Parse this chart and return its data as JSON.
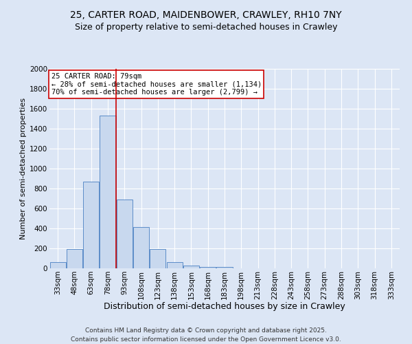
{
  "title1": "25, CARTER ROAD, MAIDENBOWER, CRAWLEY, RH10 7NY",
  "title2": "Size of property relative to semi-detached houses in Crawley",
  "xlabel": "Distribution of semi-detached houses by size in Crawley",
  "ylabel": "Number of semi-detached properties",
  "categories": [
    "33sqm",
    "48sqm",
    "63sqm",
    "78sqm",
    "93sqm",
    "108sqm",
    "123sqm",
    "138sqm",
    "153sqm",
    "168sqm",
    "183sqm",
    "198sqm",
    "213sqm",
    "228sqm",
    "243sqm",
    "258sqm",
    "273sqm",
    "288sqm",
    "303sqm",
    "318sqm",
    "333sqm"
  ],
  "values": [
    65,
    195,
    870,
    1530,
    690,
    415,
    195,
    60,
    25,
    12,
    12,
    0,
    0,
    0,
    0,
    0,
    0,
    0,
    0,
    0,
    0
  ],
  "bar_color": "#c8d8ee",
  "bar_edge_color": "#5b8cc8",
  "red_line_color": "#cc0000",
  "background_color": "#dce6f5",
  "plot_bg_color": "#dce6f5",
  "annotation_box_color": "#ffffff",
  "annotation_box_edge": "#cc0000",
  "ylim": [
    0,
    2000
  ],
  "yticks": [
    0,
    200,
    400,
    600,
    800,
    1000,
    1200,
    1400,
    1600,
    1800,
    2000
  ],
  "smaller_pct": "28%",
  "smaller_count": "1,134",
  "larger_pct": "70%",
  "larger_count": "2,799",
  "footer": "Contains HM Land Registry data © Crown copyright and database right 2025.\nContains public sector information licensed under the Open Government Licence v3.0.",
  "title1_fontsize": 10,
  "title2_fontsize": 9,
  "xlabel_fontsize": 9,
  "ylabel_fontsize": 8,
  "tick_fontsize": 7.5,
  "annot_fontsize": 7.5,
  "footer_fontsize": 6.5
}
